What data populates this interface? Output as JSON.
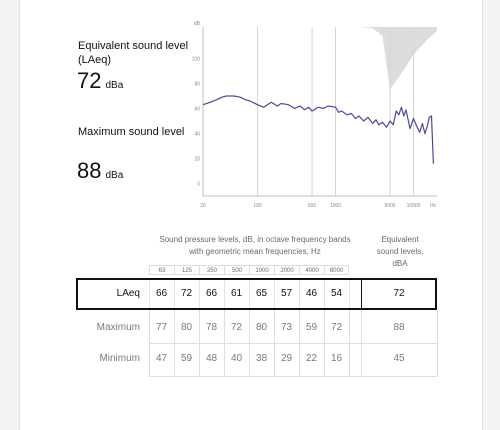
{
  "stats": {
    "leq_label": "Equivalent sound level (LAeq)",
    "leq_value": "72",
    "leq_unit": "dBa",
    "max_label": "Maximum sound level",
    "max_value": "88",
    "max_unit": "dBa"
  },
  "chart_data": {
    "type": "line",
    "ylabel": "dB",
    "xlabel": "Hz",
    "yticks": [
      0,
      20,
      40,
      60,
      80,
      100
    ],
    "ylim": [
      -5,
      125
    ],
    "xlim": [
      20,
      20000
    ],
    "xscale": "log",
    "xticks": [
      20,
      100,
      500,
      1000,
      5000,
      10000
    ],
    "xtick_labels": [
      "20",
      "100",
      "500",
      "1000",
      "5000",
      "10000"
    ],
    "vgrid_x": [
      100,
      500,
      1000,
      5000,
      10000
    ],
    "colors": {
      "series": "#4a4a9c",
      "shade": "#dcdcdc",
      "grid": "#d6d6d6"
    },
    "series": [
      {
        "x": [
          20,
          25,
          30,
          35,
          40,
          50,
          60,
          70,
          80,
          100,
          120,
          150,
          180,
          200,
          250,
          300,
          350,
          400,
          450,
          500,
          600,
          700,
          800,
          1000,
          1100,
          1200,
          1400,
          1600,
          1800,
          2000,
          2300,
          2600,
          3000,
          3300,
          3600,
          4000,
          4500,
          5000,
          5500,
          6000,
          6500,
          7000,
          7500,
          8000,
          9000,
          10000,
          11000,
          12000,
          13000,
          14000,
          15000,
          16000,
          17000,
          18000
        ],
        "values": [
          63,
          65,
          67,
          69,
          70,
          70,
          69,
          67,
          66,
          63,
          61,
          65,
          62,
          64,
          63,
          60,
          62,
          59,
          61,
          58,
          61,
          60,
          62,
          61,
          57,
          58,
          55,
          56,
          52,
          54,
          50,
          53,
          48,
          51,
          47,
          49,
          45,
          50,
          47,
          58,
          55,
          61,
          54,
          59,
          44,
          52,
          46,
          41,
          48,
          40,
          46,
          53,
          54,
          16
        ]
      }
    ],
    "shade_upper": {
      "x": [
        20,
        100,
        1000,
        2000,
        3000,
        4000,
        5000,
        7000,
        10000,
        15000,
        20000
      ],
      "values": [
        125,
        125,
        125,
        125,
        124,
        118,
        75,
        88,
        103,
        115,
        122
      ]
    }
  },
  "table": {
    "caption": "Sound pressure levels, dB, in octave frequency bands with geometric mean frequencies, Hz",
    "total_caption": "Equivalent sound levels, dBA",
    "bands": [
      "63",
      "125",
      "250",
      "500",
      "1000",
      "2000",
      "4000",
      "8000"
    ],
    "rows": [
      {
        "label": "LAeq",
        "values": [
          "66",
          "72",
          "66",
          "61",
          "65",
          "57",
          "46",
          "54"
        ],
        "total": "72"
      },
      {
        "label": "Maximum",
        "values": [
          "77",
          "80",
          "78",
          "72",
          "80",
          "73",
          "59",
          "72"
        ],
        "total": "88"
      },
      {
        "label": "Minimum",
        "values": [
          "47",
          "59",
          "48",
          "40",
          "38",
          "29",
          "22",
          "16"
        ],
        "total": "45"
      }
    ]
  }
}
